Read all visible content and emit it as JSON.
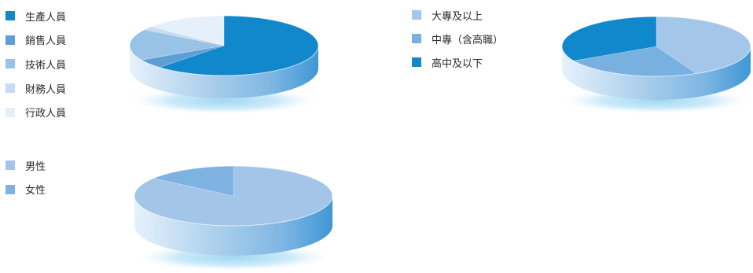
{
  "chart_data": [
    {
      "type": "pie",
      "legend_position": "left",
      "categories": [
        "生產人員",
        "銷售人員",
        "技術人員",
        "財務人員",
        "行政人員"
      ],
      "values": [
        62,
        5,
        17,
        2,
        14
      ],
      "colors": [
        "#1187cc",
        "#5d9fd4",
        "#99c3e6",
        "#c6dcf0",
        "#e6f0fa"
      ]
    },
    {
      "type": "pie",
      "legend_position": "left",
      "categories": [
        "大專及以上",
        "中專（含高職）",
        "高中及以下"
      ],
      "values": [
        43,
        24,
        33
      ],
      "colors": [
        "#a4c6e8",
        "#78b0df",
        "#1188cb"
      ]
    },
    {
      "type": "pie",
      "legend_position": "left",
      "categories": [
        "男性",
        "女性"
      ],
      "values": [
        85,
        15
      ],
      "colors": [
        "#a3c6e8",
        "#7eb2e0"
      ]
    }
  ]
}
